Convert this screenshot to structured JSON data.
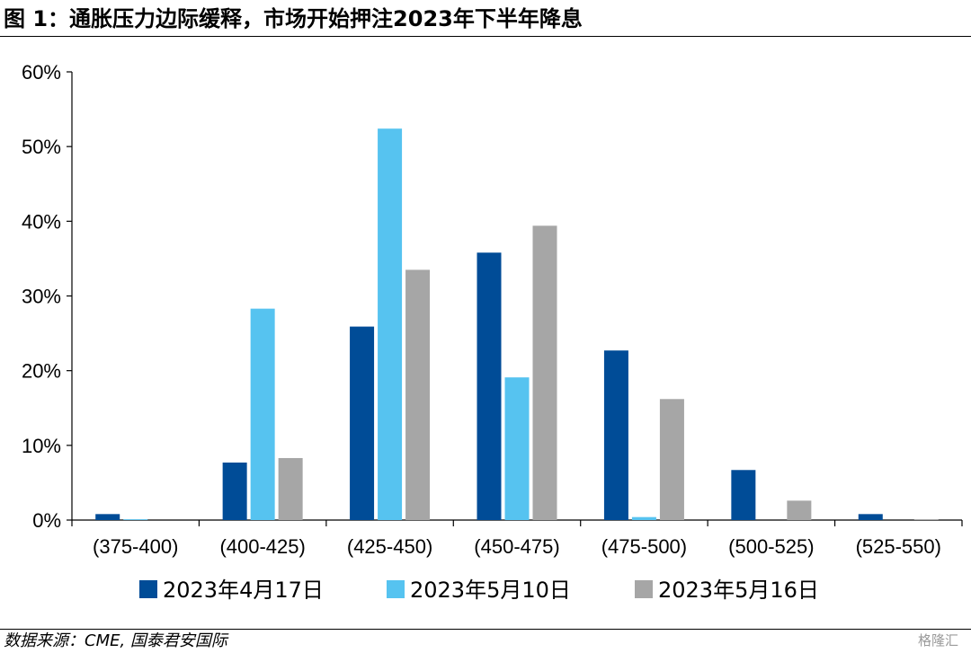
{
  "title": "图 1：通胀压力边际缓释，市场开始押注2023年下半年降息",
  "source": "数据来源：CME, 国泰君安国际",
  "watermark": "格隆汇",
  "chart_data": {
    "type": "bar",
    "categories": [
      "(375-400)",
      "(400-425)",
      "(425-450)",
      "(450-475)",
      "(475-500)",
      "(500-525)",
      "(525-550)"
    ],
    "series": [
      {
        "name": "2023年4月17日",
        "color": "#004C97",
        "values": [
          0.8,
          7.7,
          25.9,
          35.8,
          22.7,
          6.7,
          0.8
        ]
      },
      {
        "name": "2023年5月10日",
        "color": "#56C3F0",
        "values": [
          0.1,
          28.3,
          52.4,
          19.1,
          0.4,
          0.0,
          0.0
        ]
      },
      {
        "name": "2023年5月16日",
        "color": "#A6A6A6",
        "values": [
          0.0,
          8.3,
          33.5,
          39.4,
          16.2,
          2.6,
          0.1
        ]
      }
    ],
    "yticks": [
      "0%",
      "10%",
      "20%",
      "30%",
      "40%",
      "50%",
      "60%"
    ],
    "ylim": [
      0,
      60
    ],
    "grid": false,
    "legend_position": "bottom"
  }
}
